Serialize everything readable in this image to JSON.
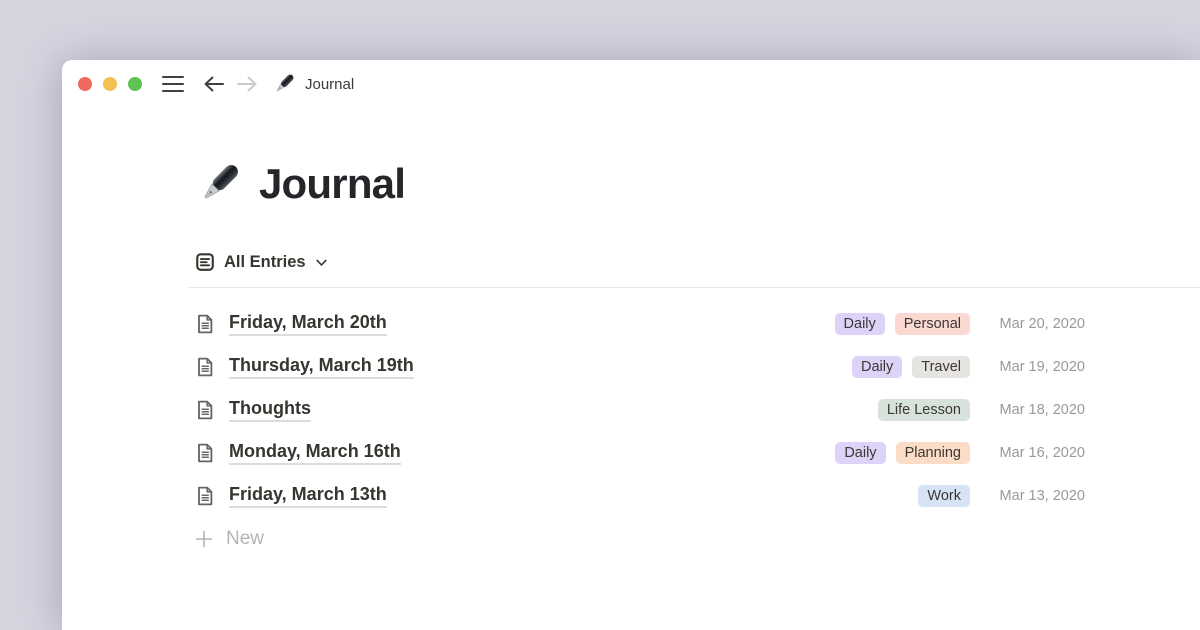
{
  "titlebar": {
    "title": "Journal",
    "back_button": "back",
    "forward_button": "forward"
  },
  "page": {
    "title": "Journal",
    "view_label": "All Entries"
  },
  "entries": [
    {
      "title": "Friday, March 20th",
      "tags": [
        {
          "label": "Daily",
          "bg": "#ddd3f9"
        },
        {
          "label": "Personal",
          "bg": "#fcd8d3"
        }
      ],
      "date": "Mar 20, 2020"
    },
    {
      "title": "Thursday, March 19th",
      "tags": [
        {
          "label": "Daily",
          "bg": "#ddd3f9"
        },
        {
          "label": "Travel",
          "bg": "#e5e4e1"
        }
      ],
      "date": "Mar 19, 2020"
    },
    {
      "title": "Thoughts",
      "tags": [
        {
          "label": "Life Lesson",
          "bg": "#d8e2dd"
        }
      ],
      "date": "Mar 18, 2020"
    },
    {
      "title": "Monday, March 16th",
      "tags": [
        {
          "label": "Daily",
          "bg": "#ddd3f9"
        },
        {
          "label": "Planning",
          "bg": "#fbdcc6"
        }
      ],
      "date": "Mar 16, 2020"
    },
    {
      "title": "Friday, March 13th",
      "tags": [
        {
          "label": "Work",
          "bg": "#d6e3f5"
        }
      ],
      "date": "Mar 13, 2020"
    }
  ],
  "new_button": {
    "label": "New"
  },
  "colors": {
    "page_background": "#d7d4e0",
    "window_background": "#ffffff",
    "traffic_red": "#ee6a5f",
    "traffic_yellow": "#f4c04e",
    "traffic_green": "#5ec353",
    "text_dark": "#37352f",
    "date_gray": "#9b9998",
    "divider": "#e8e7e6",
    "tag_text": "#3b3833"
  }
}
